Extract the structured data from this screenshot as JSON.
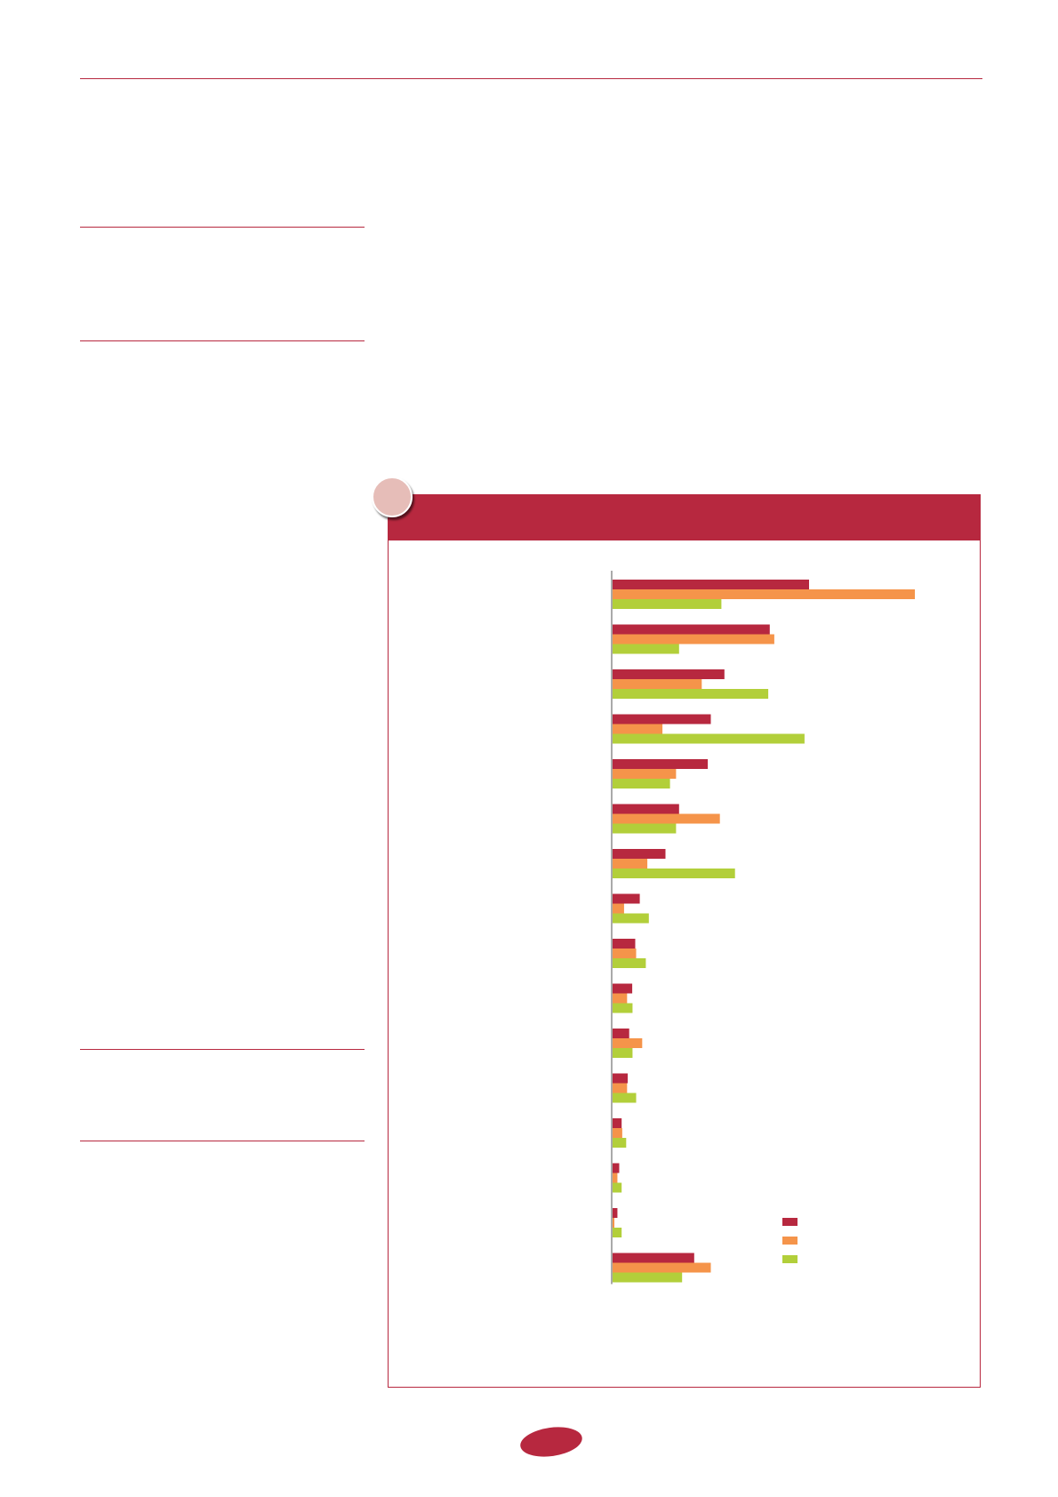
{
  "colors": {
    "accent": "#b7283f",
    "badge_fill": "#e6bdb8",
    "series_1": "#b7283f",
    "series_2": "#f5944a",
    "series_3": "#b2cf3a"
  },
  "chart_data": {
    "type": "bar",
    "orientation": "horizontal",
    "title": "",
    "xlabel": "",
    "ylabel": "",
    "xlim": [
      0,
      100
    ],
    "grid": false,
    "legend_position": "bottom-right",
    "categories": [
      "",
      "",
      "",
      "",
      "",
      "",
      "",
      "",
      "",
      "",
      "",
      "",
      "",
      "",
      "",
      ""
    ],
    "series": [
      {
        "color": "#b7283f",
        "values": [
          65,
          52,
          37,
          32.5,
          31.5,
          22,
          17.5,
          9,
          7.5,
          6.5,
          5.5,
          5,
          3,
          2.2,
          1.6,
          27
        ]
      },
      {
        "color": "#f5944a",
        "values": [
          100,
          53.5,
          29.5,
          16.5,
          21,
          35.5,
          11.5,
          3.8,
          7.8,
          4.8,
          9.8,
          4.8,
          3.2,
          1.6,
          0.6,
          32.5
        ]
      },
      {
        "color": "#b2cf3a",
        "values": [
          36,
          22,
          51.5,
          63.5,
          19,
          21,
          40.5,
          12,
          11,
          6.6,
          6.6,
          7.8,
          4.5,
          3,
          3,
          23
        ]
      }
    ]
  }
}
